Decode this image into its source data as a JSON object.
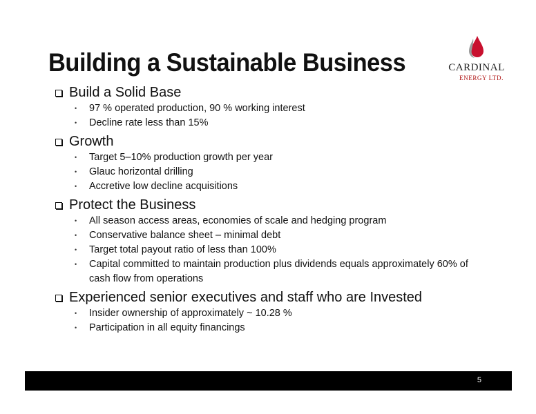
{
  "title": "Building a Sustainable Business",
  "logo": {
    "name": "CARDINAL",
    "tagline": "ENERGY LTD.",
    "icon": "flame-drop-icon"
  },
  "sections": [
    {
      "heading": "Build a Solid Base",
      "bullets": [
        "97 % operated production, 90 % working interest",
        "Decline rate less than 15%"
      ]
    },
    {
      "heading": "Growth",
      "bullets": [
        "Target 5–10% production growth per year",
        "Glauc horizontal drilling",
        "Accretive low decline acquisitions"
      ]
    },
    {
      "heading": "Protect the Business",
      "bullets": [
        "All season access areas, economies of scale and hedging program",
        "Conservative balance sheet – minimal debt",
        "Target total payout ratio of less than 100%",
        "Capital committed to maintain production plus dividends equals approximately 60% of cash flow from operations"
      ]
    },
    {
      "heading": "Experienced senior executives and staff who are Invested",
      "bullets": [
        "Insider ownership of approximately ~ 10.28 %",
        "Participation in all equity financings"
      ]
    }
  ],
  "footer": {
    "page_number": "5"
  },
  "colors": {
    "brand_red": "#c8102e",
    "footer_bg": "#000000"
  }
}
